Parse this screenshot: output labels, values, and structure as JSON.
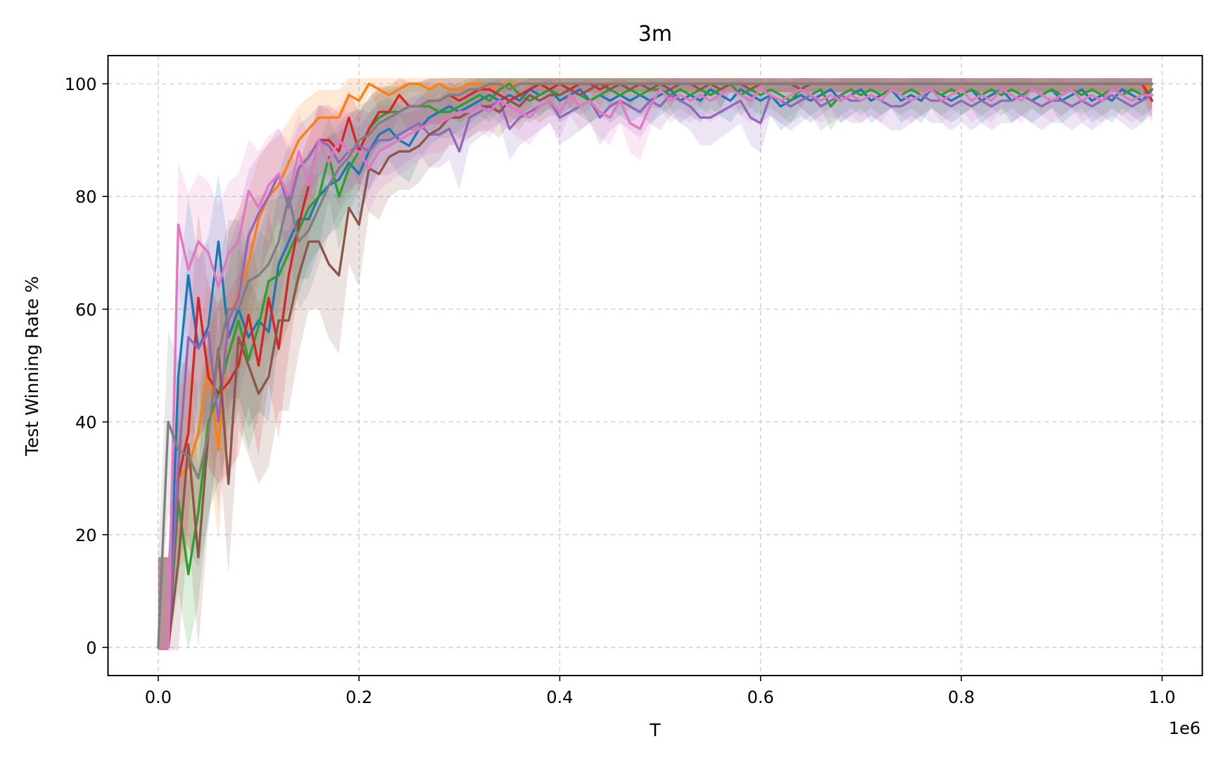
{
  "chart_data": {
    "type": "line",
    "title": "3m",
    "xlabel": "T",
    "ylabel": "Test Winning Rate %",
    "x_offset_label": "1e6",
    "xlim": [
      -0.05,
      1.04
    ],
    "ylim": [
      -5,
      105
    ],
    "xticks": [
      0.0,
      0.2,
      0.4,
      0.6,
      0.8,
      1.0
    ],
    "xtick_labels": [
      "0.0",
      "0.2",
      "0.4",
      "0.6",
      "0.8",
      "1.0"
    ],
    "yticks": [
      0,
      20,
      40,
      60,
      80,
      100
    ],
    "ytick_labels": [
      "0",
      "20",
      "40",
      "60",
      "80",
      "100"
    ],
    "grid": true,
    "legend": false,
    "x": [
      0.0,
      0.01,
      0.02,
      0.03,
      0.04,
      0.05,
      0.06,
      0.07,
      0.08,
      0.09,
      0.1,
      0.11,
      0.12,
      0.13,
      0.14,
      0.15,
      0.16,
      0.17,
      0.18,
      0.19,
      0.2,
      0.21,
      0.22,
      0.23,
      0.24,
      0.25,
      0.26,
      0.27,
      0.28,
      0.29,
      0.3,
      0.31,
      0.32,
      0.33,
      0.34,
      0.35,
      0.36,
      0.37,
      0.38,
      0.39,
      0.4,
      0.41,
      0.42,
      0.43,
      0.44,
      0.45,
      0.46,
      0.47,
      0.48,
      0.49,
      0.5,
      0.51,
      0.52,
      0.53,
      0.54,
      0.55,
      0.56,
      0.57,
      0.58,
      0.59,
      0.6,
      0.61,
      0.62,
      0.63,
      0.64,
      0.65,
      0.66,
      0.67,
      0.68,
      0.69,
      0.7,
      0.71,
      0.72,
      0.73,
      0.74,
      0.75,
      0.76,
      0.77,
      0.78,
      0.79,
      0.8,
      0.81,
      0.82,
      0.83,
      0.84,
      0.85,
      0.86,
      0.87,
      0.88,
      0.89,
      0.9,
      0.91,
      0.92,
      0.93,
      0.94,
      0.95,
      0.96,
      0.97,
      0.98,
      0.99
    ],
    "series": [
      {
        "color": "#1f77b4",
        "values": [
          0,
          0,
          48,
          66,
          53,
          57,
          72,
          55,
          60,
          55,
          58,
          56,
          68,
          72,
          76,
          76,
          80,
          82,
          83,
          86,
          84,
          88,
          91,
          92,
          90,
          89,
          92,
          94,
          95,
          96,
          95,
          96,
          97,
          98,
          97,
          98,
          97,
          99,
          98,
          99,
          97,
          98,
          99,
          97,
          98,
          97,
          98,
          97,
          98,
          97,
          98,
          99,
          97,
          98,
          97,
          99,
          98,
          97,
          99,
          98,
          97,
          98,
          96,
          97,
          98,
          97,
          98,
          99,
          97,
          98,
          99,
          97,
          98,
          99,
          97,
          98,
          97,
          99,
          98,
          97,
          98,
          99,
          97,
          98,
          99,
          97,
          98,
          97,
          98,
          99,
          97,
          98,
          99,
          97,
          98,
          97,
          99,
          98,
          97,
          99
        ]
      },
      {
        "color": "#ff7f0e",
        "values": [
          0,
          0,
          30,
          32,
          38,
          50,
          35,
          58,
          63,
          68,
          76,
          80,
          82,
          86,
          90,
          92,
          94,
          94,
          94,
          98,
          97,
          100,
          99,
          98,
          99,
          100,
          100,
          99,
          100,
          99,
          99,
          100,
          100,
          99,
          100,
          100,
          100,
          100,
          100,
          100,
          100,
          100,
          100,
          100,
          100,
          100,
          100,
          100,
          100,
          100,
          100,
          100,
          100,
          100,
          100,
          100,
          100,
          100,
          100,
          100,
          100,
          100,
          100,
          100,
          100,
          100,
          100,
          100,
          100,
          100,
          100,
          100,
          100,
          100,
          100,
          100,
          100,
          100,
          100,
          100,
          100,
          100,
          100,
          100,
          100,
          100,
          100,
          100,
          100,
          100,
          100,
          100,
          100,
          100,
          100,
          100,
          100,
          100,
          100,
          99
        ]
      },
      {
        "color": "#2ca02c",
        "values": [
          0,
          0,
          26,
          13,
          24,
          40,
          45,
          52,
          58,
          51,
          57,
          65,
          66,
          70,
          74,
          78,
          80,
          87,
          80,
          85,
          88,
          92,
          94,
          95,
          95,
          96,
          96,
          96,
          95,
          95,
          96,
          97,
          98,
          97,
          99,
          100,
          98,
          97,
          98,
          99,
          98,
          99,
          98,
          97,
          98,
          99,
          98,
          99,
          98,
          99,
          99,
          98,
          99,
          98,
          99,
          98,
          99,
          100,
          98,
          99,
          98,
          99,
          98,
          97,
          99,
          98,
          99,
          96,
          98,
          99,
          98,
          99,
          98,
          99,
          98,
          99,
          98,
          99,
          98,
          99,
          98,
          99,
          98,
          99,
          98,
          99,
          98,
          99,
          98,
          99,
          98,
          99,
          98,
          99,
          98,
          99,
          98,
          99,
          98,
          99
        ]
      },
      {
        "color": "#d62728",
        "values": [
          0,
          0,
          30,
          38,
          62,
          48,
          45,
          47,
          50,
          59,
          50,
          62,
          53,
          66,
          75,
          82,
          90,
          90,
          88,
          94,
          88,
          92,
          95,
          95,
          98,
          96,
          96,
          97,
          97,
          98,
          97,
          98,
          99,
          99,
          98,
          97,
          98,
          99,
          100,
          99,
          100,
          99,
          100,
          100,
          99,
          100,
          100,
          100,
          100,
          100,
          100,
          100,
          100,
          100,
          100,
          100,
          100,
          100,
          100,
          100,
          100,
          100,
          100,
          100,
          100,
          100,
          100,
          100,
          100,
          100,
          100,
          100,
          100,
          100,
          100,
          100,
          100,
          100,
          100,
          100,
          100,
          100,
          100,
          100,
          100,
          100,
          100,
          100,
          100,
          100,
          100,
          100,
          100,
          100,
          100,
          100,
          100,
          100,
          100,
          97
        ]
      },
      {
        "color": "#9467bd",
        "values": [
          0,
          0,
          32,
          55,
          53,
          56,
          40,
          58,
          62,
          73,
          77,
          80,
          84,
          78,
          85,
          87,
          90,
          89,
          86,
          88,
          89,
          88,
          90,
          90,
          91,
          92,
          93,
          91,
          91,
          92,
          88,
          94,
          95,
          96,
          97,
          92,
          94,
          95,
          96,
          97,
          94,
          95,
          96,
          97,
          94,
          96,
          97,
          96,
          95,
          97,
          96,
          98,
          97,
          96,
          94,
          94,
          95,
          96,
          97,
          94,
          93,
          98,
          97,
          96,
          97,
          98,
          96,
          97,
          98,
          97,
          97,
          98,
          97,
          96,
          96,
          97,
          98,
          97,
          97,
          96,
          97,
          96,
          97,
          96,
          97,
          97,
          98,
          97,
          96,
          97,
          97,
          96,
          97,
          96,
          97,
          98,
          97,
          96,
          97,
          98
        ]
      },
      {
        "color": "#8c564b",
        "values": [
          0,
          0,
          15,
          36,
          16,
          38,
          53,
          29,
          55,
          50,
          45,
          48,
          58,
          58,
          66,
          72,
          72,
          68,
          66,
          78,
          75,
          85,
          84,
          87,
          88,
          88,
          89,
          91,
          92,
          94,
          94,
          95,
          96,
          96,
          95,
          97,
          96,
          98,
          97,
          98,
          98,
          99,
          98,
          99,
          100,
          99,
          100,
          99,
          100,
          99,
          100,
          99,
          100,
          100,
          99,
          100,
          99,
          100,
          100,
          99,
          100,
          100,
          100,
          100,
          99,
          100,
          100,
          100,
          100,
          100,
          100,
          100,
          100,
          100,
          100,
          100,
          100,
          100,
          100,
          100,
          100,
          100,
          100,
          100,
          100,
          100,
          100,
          100,
          100,
          100,
          100,
          100,
          100,
          100,
          100,
          100,
          100,
          100,
          100,
          100
        ]
      },
      {
        "color": "#e377c2",
        "values": [
          0,
          0,
          75,
          67,
          72,
          70,
          64,
          70,
          72,
          81,
          78,
          82,
          84,
          80,
          88,
          82,
          90,
          86,
          90,
          88,
          88,
          85,
          88,
          89,
          90,
          91,
          92,
          93,
          93,
          94,
          95,
          95,
          96,
          95,
          97,
          96,
          95,
          94,
          96,
          97,
          95,
          98,
          96,
          97,
          95,
          94,
          97,
          93,
          92,
          96,
          99,
          97,
          98,
          97,
          98,
          97,
          98,
          99,
          98,
          97,
          99,
          98,
          97,
          98,
          99,
          98,
          97,
          98,
          97,
          98,
          97,
          98,
          97,
          99,
          98,
          97,
          98,
          99,
          97,
          98,
          99,
          97,
          98,
          97,
          99,
          98,
          97,
          99,
          98,
          97,
          98,
          99,
          97,
          98,
          97,
          99,
          98,
          97,
          98,
          98
        ]
      },
      {
        "color": "#7f7f7f",
        "values": [
          0,
          40,
          35,
          34,
          30,
          38,
          52,
          60,
          60,
          65,
          66,
          68,
          72,
          80,
          72,
          74,
          78,
          82,
          85,
          87,
          90,
          91,
          93,
          94,
          95,
          96,
          96,
          97,
          97,
          98,
          98,
          99,
          99,
          100,
          100,
          99,
          100,
          100,
          100,
          100,
          100,
          100,
          100,
          100,
          100,
          100,
          100,
          100,
          100,
          100,
          100,
          100,
          100,
          100,
          100,
          100,
          100,
          100,
          100,
          100,
          100,
          100,
          100,
          100,
          100,
          100,
          100,
          100,
          100,
          100,
          100,
          100,
          100,
          100,
          100,
          100,
          100,
          100,
          100,
          100,
          100,
          100,
          100,
          100,
          100,
          100,
          100,
          100,
          100,
          100,
          100,
          100,
          100,
          100,
          100,
          100,
          100,
          100,
          100,
          100
        ]
      }
    ]
  }
}
